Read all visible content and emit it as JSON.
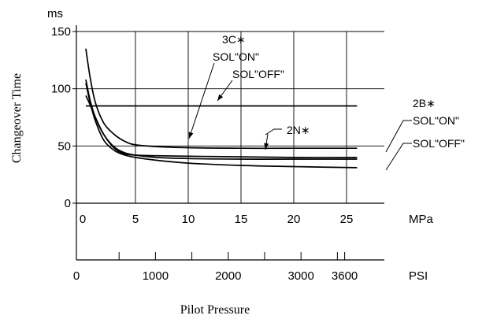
{
  "chart_data": {
    "type": "line",
    "ylabel": "Changeover Time",
    "xlabel": "Pilot Pressure",
    "y_unit": "ms",
    "x_unit_primary": "MPa",
    "x_unit_secondary": "PSI",
    "ylim": [
      0,
      150
    ],
    "xlim": [
      0,
      26
    ],
    "grid": true,
    "y_ticks": [
      {
        "value": 0,
        "label": "0"
      },
      {
        "value": 50,
        "label": "50"
      },
      {
        "value": 100,
        "label": "100"
      },
      {
        "value": 150,
        "label": "150"
      }
    ],
    "x_ticks": [
      {
        "value": 0,
        "label": "0"
      },
      {
        "value": 5,
        "label": "5"
      },
      {
        "value": 10,
        "label": "10"
      },
      {
        "value": 15,
        "label": "15"
      },
      {
        "value": 20,
        "label": "20"
      },
      {
        "value": 25,
        "label": "25"
      }
    ],
    "psi_ticks": [
      {
        "value": 0,
        "label": "0"
      },
      {
        "value": 1000,
        "label": "1000"
      },
      {
        "value": 2000,
        "label": "2000"
      },
      {
        "value": 3000,
        "label": "3000"
      },
      {
        "value": 3600,
        "label": "3600"
      }
    ],
    "psi_minor_ticks": [
      500,
      1500,
      2500,
      3500
    ],
    "series": [
      {
        "key": "s3c_on",
        "x": [
          0.3,
          0.7,
          1.2,
          2,
          3,
          4,
          5,
          7,
          10,
          15,
          20,
          26
        ],
        "y": [
          135,
          110,
          88,
          70,
          60,
          54,
          51,
          49.5,
          48.5,
          48,
          48,
          48
        ]
      },
      {
        "key": "s3c_off",
        "x": [
          0.3,
          0.7,
          1.2,
          2,
          3,
          4,
          5,
          7,
          10,
          15,
          20,
          26
        ],
        "y": [
          94,
          86,
          75,
          60,
          48,
          43,
          42,
          41.5,
          41,
          40.5,
          40,
          40
        ]
      },
      {
        "key": "s2b_on",
        "x": [
          0.3,
          0.7,
          1.2,
          2,
          3,
          4,
          5,
          7,
          10,
          15,
          20,
          26
        ],
        "y": [
          108,
          90,
          75,
          60,
          49,
          44,
          42,
          40,
          39,
          38.5,
          38.5,
          38.5
        ]
      },
      {
        "key": "s2b_off",
        "x": [
          0.3,
          0.7,
          1.2,
          2,
          3,
          4,
          5,
          7,
          10,
          15,
          20,
          26
        ],
        "y": [
          105,
          88,
          72,
          55,
          46,
          42,
          40,
          37.5,
          35,
          33,
          32,
          31
        ]
      },
      {
        "key": "s2n",
        "x": [
          0.3,
          26
        ],
        "y": [
          85,
          85
        ]
      }
    ],
    "annotations": {
      "label_3c": "3C∗",
      "label_3c_on": "SOL\"ON\"",
      "label_3c_off": "SOL\"OFF\"",
      "label_2b": "2B∗",
      "label_2b_on": "SOL\"ON\"",
      "label_2b_off": "SOL\"OFF\"",
      "label_2n": "2N∗"
    }
  }
}
